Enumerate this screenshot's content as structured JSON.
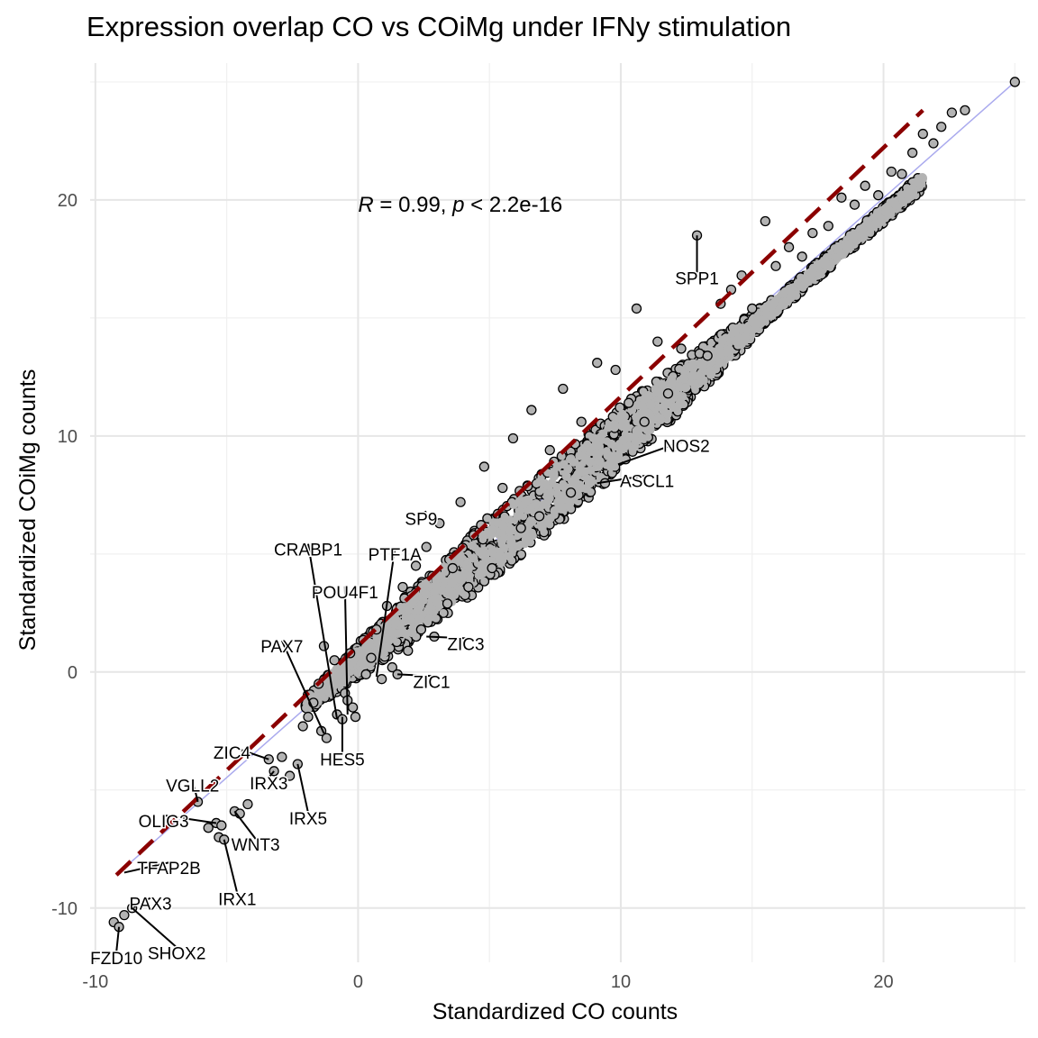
{
  "chart_data": {
    "type": "scatter",
    "title": "Expression overlap CO vs COiMg under IFNy stimulation",
    "xlabel": "Standardized CO counts",
    "ylabel": "Standardized COiMg counts",
    "xlim": [
      -10.2,
      25.4
    ],
    "ylim": [
      -12.3,
      25.8
    ],
    "x_ticks": [
      -10,
      0,
      10,
      20
    ],
    "y_ticks": [
      -10,
      0,
      10,
      20
    ],
    "grid": true,
    "annotation": {
      "r_label": "R",
      "r_text": " = 0.99, ",
      "p_label": "p",
      "p_text": " < 2.2e-16",
      "x": 0,
      "y": 19.8
    },
    "colors": {
      "points": "#b3b3b3",
      "outline": "#000000",
      "regression_line": "#8b0000",
      "identity_line": "#aaaaee"
    },
    "regression_line": {
      "x": [
        -9.2,
        21.5
      ],
      "y": [
        -8.6,
        23.8
      ]
    },
    "bulk_band": {
      "x_start": -2,
      "x_end": 21.5,
      "y_start": -1.4,
      "y_end": 20.8
    },
    "points": [
      [
        -9.3,
        -10.6
      ],
      [
        -9.1,
        -10.8
      ],
      [
        -8.6,
        -10.0
      ],
      [
        -8.9,
        -10.3
      ],
      [
        -6.1,
        -5.5
      ],
      [
        -5.7,
        -6.6
      ],
      [
        -5.4,
        -6.4
      ],
      [
        -5.2,
        -6.5
      ],
      [
        -5.3,
        -7.0
      ],
      [
        -5.1,
        -7.1
      ],
      [
        -4.7,
        -5.9
      ],
      [
        -4.5,
        -6.0
      ],
      [
        -4.2,
        -5.6
      ],
      [
        -3.4,
        -3.7
      ],
      [
        -3.2,
        -4.2
      ],
      [
        -2.9,
        -3.6
      ],
      [
        -2.6,
        -4.4
      ],
      [
        -2.3,
        -3.9
      ],
      [
        -2.1,
        -2.3
      ],
      [
        -1.9,
        -1.9
      ],
      [
        -1.7,
        -1.3
      ],
      [
        -1.5,
        -0.5
      ],
      [
        -1.4,
        -2.5
      ],
      [
        -1.2,
        -2.8
      ],
      [
        -1.3,
        1.1
      ],
      [
        -0.9,
        0.5
      ],
      [
        -0.8,
        -1.8
      ],
      [
        -0.6,
        -2.0
      ],
      [
        -0.5,
        -0.9
      ],
      [
        -0.4,
        -1.2
      ],
      [
        -0.3,
        0.8
      ],
      [
        -0.2,
        -1.5
      ],
      [
        -0.1,
        -1.9
      ],
      [
        0.3,
        -0.1
      ],
      [
        0.5,
        0.6
      ],
      [
        0.7,
        1.8
      ],
      [
        0.9,
        -0.3
      ],
      [
        1.1,
        2.8
      ],
      [
        1.3,
        0.2
      ],
      [
        1.5,
        -0.1
      ],
      [
        1.7,
        3.6
      ],
      [
        1.9,
        0.9
      ],
      [
        2.2,
        4.5
      ],
      [
        2.4,
        1.8
      ],
      [
        2.6,
        5.3
      ],
      [
        2.9,
        1.5
      ],
      [
        3.1,
        6.3
      ],
      [
        3.4,
        2.9
      ],
      [
        3.6,
        4.4
      ],
      [
        3.9,
        7.2
      ],
      [
        4.2,
        3.6
      ],
      [
        4.4,
        5.8
      ],
      [
        4.8,
        8.7
      ],
      [
        5.1,
        4.4
      ],
      [
        5.5,
        7.8
      ],
      [
        5.9,
        9.9
      ],
      [
        6.2,
        6.1
      ],
      [
        6.6,
        11.1
      ],
      [
        6.9,
        6.6
      ],
      [
        7.3,
        9.4
      ],
      [
        7.8,
        12.0
      ],
      [
        8.1,
        7.6
      ],
      [
        8.5,
        10.6
      ],
      [
        9.1,
        13.1
      ],
      [
        9.4,
        8.0
      ],
      [
        9.8,
        12.8
      ],
      [
        10.3,
        11.4
      ],
      [
        10.6,
        15.4
      ],
      [
        10.9,
        10.6
      ],
      [
        11.4,
        14.0
      ],
      [
        11.8,
        11.8
      ],
      [
        12.3,
        13.7
      ],
      [
        12.9,
        18.5
      ],
      [
        13.3,
        13.4
      ],
      [
        13.8,
        15.6
      ],
      [
        14.2,
        16.2
      ],
      [
        14.6,
        16.8
      ],
      [
        15.0,
        15.4
      ],
      [
        15.5,
        19.1
      ],
      [
        15.9,
        17.2
      ],
      [
        16.4,
        18.0
      ],
      [
        16.9,
        17.6
      ],
      [
        17.3,
        18.6
      ],
      [
        17.9,
        18.9
      ],
      [
        18.4,
        20.1
      ],
      [
        18.9,
        19.8
      ],
      [
        19.3,
        20.6
      ],
      [
        19.8,
        20.2
      ],
      [
        20.3,
        21.2
      ],
      [
        20.7,
        21.1
      ],
      [
        21.1,
        22.0
      ],
      [
        21.5,
        22.8
      ],
      [
        21.9,
        22.4
      ],
      [
        22.2,
        23.1
      ],
      [
        22.6,
        23.7
      ],
      [
        23.1,
        23.8
      ],
      [
        25.0,
        25.0
      ]
    ],
    "labels": [
      {
        "text": "SPP1",
        "x": 12.9,
        "y": 18.5,
        "lx": 12.9,
        "ly": 16.7
      },
      {
        "text": "NOS2",
        "x": 9.9,
        "y": 8.8,
        "lx": 12.5,
        "ly": 9.6
      },
      {
        "text": "ASCL1",
        "x": 9.1,
        "y": 8.0,
        "lx": 11.0,
        "ly": 8.1
      },
      {
        "text": "SP9",
        "x": 2.6,
        "y": 6.8,
        "lx": 2.4,
        "ly": 6.5
      },
      {
        "text": "CRABP1",
        "x": -0.8,
        "y": -2.0,
        "lx": -1.9,
        "ly": 5.2
      },
      {
        "text": "PTF1A",
        "x": 0.7,
        "y": -0.2,
        "lx": 1.4,
        "ly": 5.0
      },
      {
        "text": "POU4F1",
        "x": -0.4,
        "y": -1.8,
        "lx": -0.5,
        "ly": 3.4
      },
      {
        "text": "PAX7",
        "x": -1.3,
        "y": -2.6,
        "lx": -2.9,
        "ly": 1.1
      },
      {
        "text": "ZIC3",
        "x": 2.6,
        "y": 1.5,
        "lx": 4.1,
        "ly": 1.2
      },
      {
        "text": "ZIC1",
        "x": 1.5,
        "y": -0.1,
        "lx": 2.8,
        "ly": -0.4
      },
      {
        "text": "HES5",
        "x": -0.6,
        "y": -1.9,
        "lx": -0.6,
        "ly": -3.7
      },
      {
        "text": "ZIC4",
        "x": -3.4,
        "y": -3.7,
        "lx": -4.8,
        "ly": -3.4
      },
      {
        "text": "IRX3",
        "x": -3.2,
        "y": -4.2,
        "lx": -3.4,
        "ly": -4.7
      },
      {
        "text": "IRX5",
        "x": -2.3,
        "y": -3.9,
        "lx": -1.9,
        "ly": -6.2
      },
      {
        "text": "VGLL2",
        "x": -6.1,
        "y": -5.5,
        "lx": -6.3,
        "ly": -4.8
      },
      {
        "text": "OLIG3",
        "x": -5.4,
        "y": -6.4,
        "lx": -7.4,
        "ly": -6.3
      },
      {
        "text": "WNT3",
        "x": -4.7,
        "y": -5.9,
        "lx": -3.9,
        "ly": -7.3
      },
      {
        "text": "TFAP2B",
        "x": -8.9,
        "y": -8.5,
        "lx": -7.2,
        "ly": -8.3
      },
      {
        "text": "IRX1",
        "x": -5.1,
        "y": -7.1,
        "lx": -4.6,
        "ly": -9.6
      },
      {
        "text": "PAX3",
        "x": -8.6,
        "y": -10.0,
        "lx": -7.9,
        "ly": -9.8
      },
      {
        "text": "SHOX2",
        "x": -8.6,
        "y": -10.0,
        "lx": -6.9,
        "ly": -11.9
      },
      {
        "text": "FZD10",
        "x": -9.1,
        "y": -10.8,
        "lx": -9.2,
        "ly": -12.1
      }
    ]
  }
}
